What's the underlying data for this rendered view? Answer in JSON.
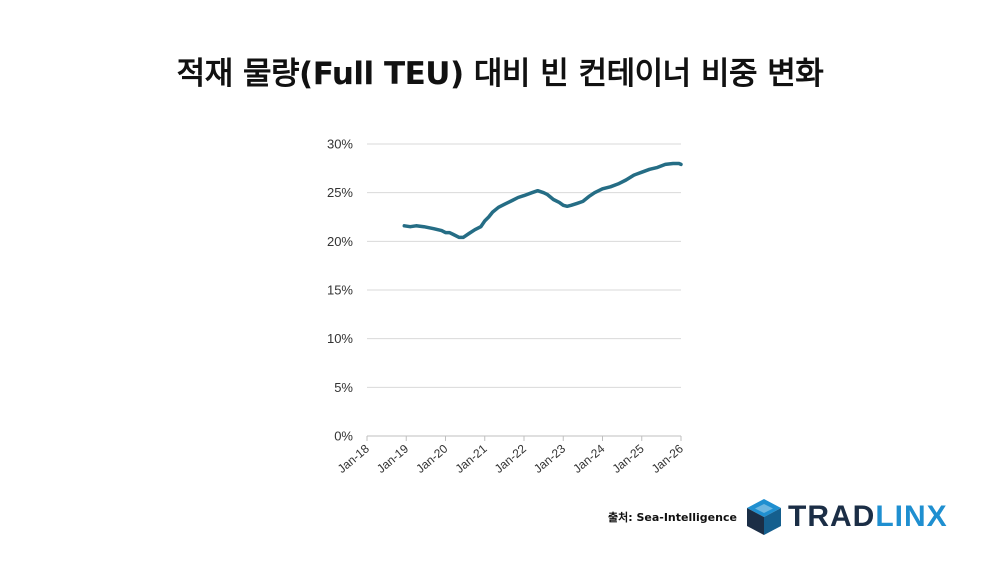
{
  "title": "적재 물량(Full TEU) 대비 빈 컨테이너 비중 변화",
  "source_text": "출처: Sea-Intelligence",
  "logo": {
    "part1": "TRAD",
    "part2": "LINX",
    "icon": "cube-logo-icon"
  },
  "colors": {
    "line": "#256d85",
    "grid": "#d9d9d9",
    "logo_dark": "#1b2e46",
    "logo_light": "#1f8fd0"
  },
  "chart_data": {
    "type": "line",
    "title": "",
    "xlabel": "",
    "ylabel": "",
    "x_range": [
      2018,
      2026
    ],
    "ylim": [
      0,
      30
    ],
    "grid": true,
    "y_ticks": [
      "0%",
      "5%",
      "10%",
      "15%",
      "20%",
      "25%",
      "30%"
    ],
    "y_tick_values": [
      0,
      5,
      10,
      15,
      20,
      25,
      30
    ],
    "x_ticks": [
      "Jan-18",
      "Jan-19",
      "Jan-20",
      "Jan-21",
      "Jan-22",
      "Jan-23",
      "Jan-24",
      "Jan-25",
      "Jan-26"
    ],
    "x_tick_values": [
      2018,
      2019,
      2020,
      2021,
      2022,
      2023,
      2024,
      2025,
      2026
    ],
    "series": [
      {
        "x": [
          2018.95,
          2019.1,
          2019.25,
          2019.45,
          2019.7,
          2019.9,
          2020.0,
          2020.1,
          2020.2,
          2020.35,
          2020.45,
          2020.6,
          2020.75,
          2020.9,
          2021.0,
          2021.1,
          2021.2,
          2021.35,
          2021.5,
          2021.7,
          2021.85,
          2022.0,
          2022.2,
          2022.35,
          2022.5,
          2022.6,
          2022.75,
          2022.9,
          2023.0,
          2023.1,
          2023.2,
          2023.35,
          2023.5,
          2023.65,
          2023.8,
          2024.0,
          2024.2,
          2024.4,
          2024.6,
          2024.8,
          2025.0,
          2025.2,
          2025.4,
          2025.6,
          2025.8,
          2025.95,
          2026.0
        ],
        "y": [
          21.6,
          21.5,
          21.6,
          21.5,
          21.3,
          21.1,
          20.9,
          20.9,
          20.7,
          20.4,
          20.4,
          20.8,
          21.2,
          21.5,
          22.1,
          22.5,
          23.0,
          23.5,
          23.8,
          24.2,
          24.5,
          24.7,
          25.0,
          25.2,
          25.0,
          24.8,
          24.3,
          24.0,
          23.7,
          23.6,
          23.7,
          23.9,
          24.1,
          24.6,
          25.0,
          25.4,
          25.6,
          25.9,
          26.3,
          26.8,
          27.1,
          27.4,
          27.6,
          27.9,
          28.0,
          28.0,
          27.9
        ]
      }
    ]
  }
}
